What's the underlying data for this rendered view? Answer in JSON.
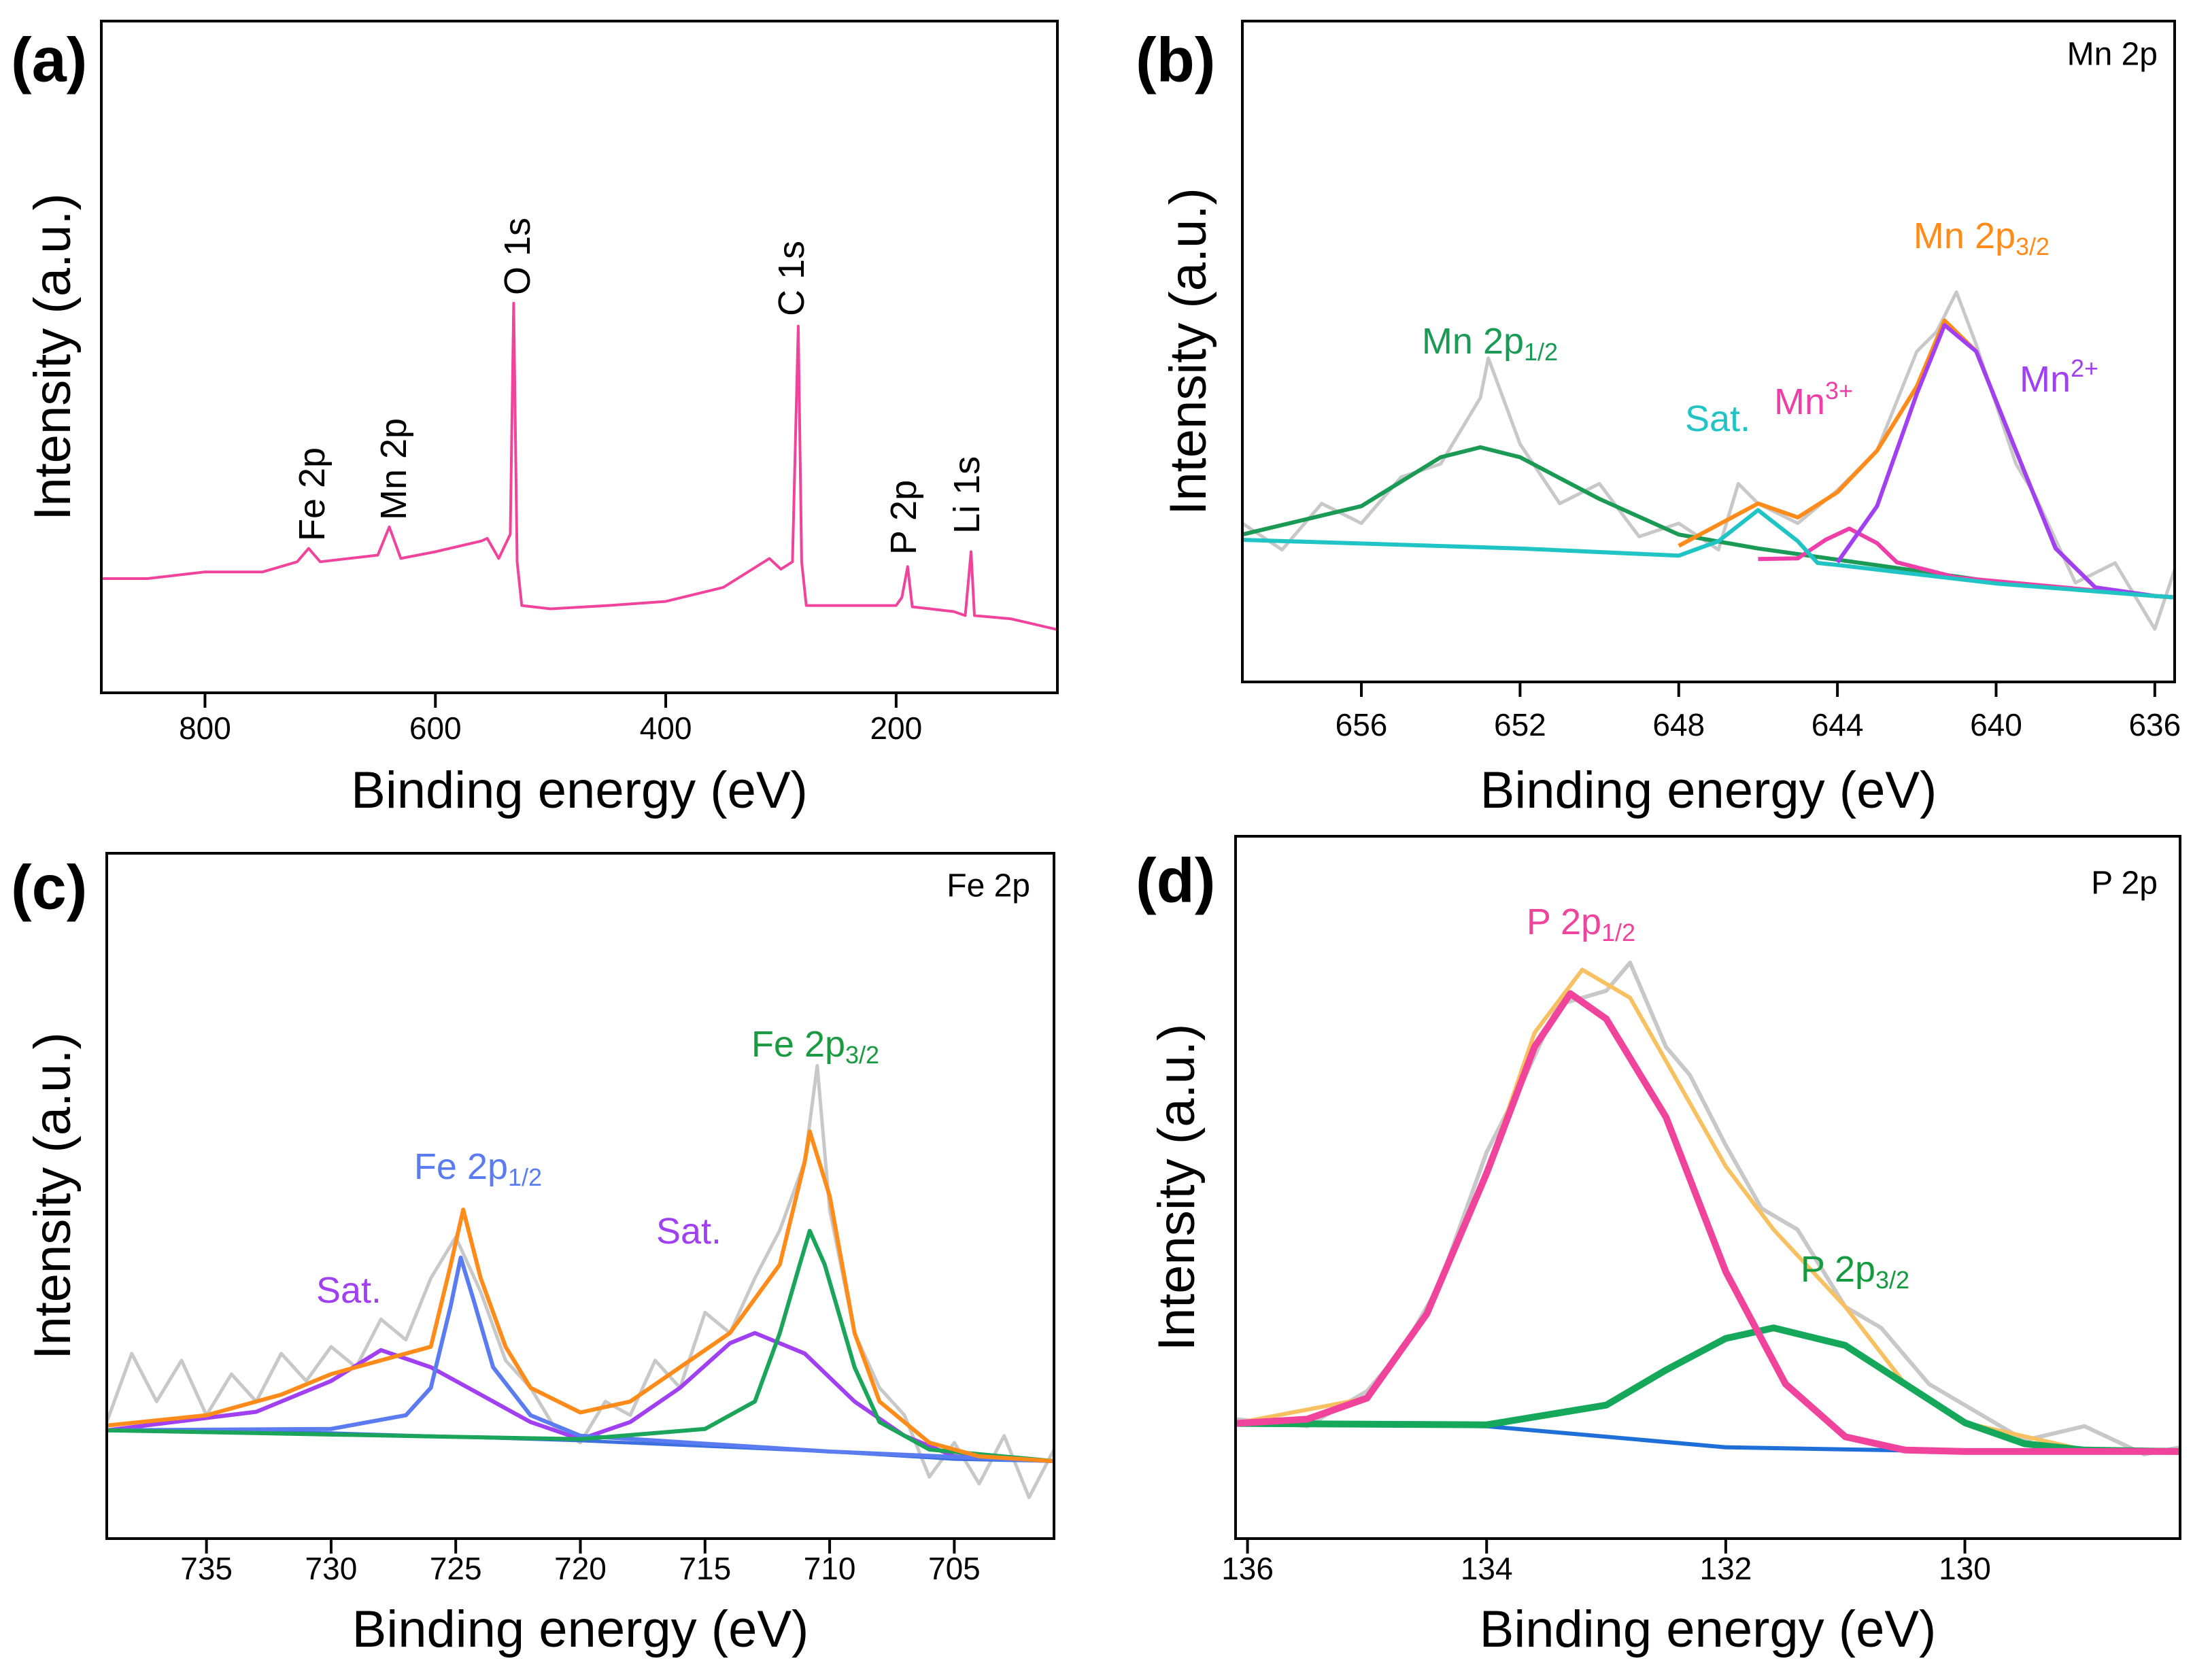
{
  "charts": [
    {
      "chart_data": {
        "type": "line",
        "panel_label": "(a)",
        "x_label": "Binding energy (eV)",
        "y_label": "Intensity (a.u.)",
        "xlim": [
          890,
          60
        ],
        "ylim": [
          0,
          100
        ],
        "xticks": [
          800,
          600,
          400,
          200
        ],
        "series": [
          {
            "color": "#f0449c",
            "width": 4,
            "x": [
              890,
              850,
              800,
              750,
              720,
              710,
              700,
              650,
              640,
              630,
              600,
              560,
              555,
              545,
              535,
              532,
              529,
              525,
              500,
              450,
              400,
              350,
              310,
              300,
              290,
              285,
              282,
              278,
              250,
              200,
              195,
              190,
              186,
              150,
              140,
              135,
              132,
              100,
              60
            ],
            "values": [
              17,
              17,
              18,
              18,
              19.5,
              21.5,
              19.5,
              20.5,
              24.7,
              20,
              21,
              22.6,
              23,
              20,
              23.6,
              58,
              19.5,
              13,
              12.5,
              13,
              13.6,
              15.7,
              20,
              18.4,
              19.5,
              54.6,
              19.5,
              13,
              13,
              13,
              14.2,
              18.8,
              12.8,
              12.1,
              11.5,
              21,
              11.5,
              11,
              9.4
            ]
          }
        ],
        "annotations": [
          {
            "text": "Fe 2p"
          },
          {
            "text": "Mn 2p"
          },
          {
            "text": "O 1s"
          },
          {
            "text": "C 1s"
          },
          {
            "text": "P 2p"
          },
          {
            "text": "Li 1s"
          }
        ]
      }
    },
    {
      "chart_data": {
        "type": "line",
        "panel_label": "(b)",
        "label": "Mn 2p",
        "x_label": "Binding energy (eV)",
        "y_label": "Intensity (a.u.)",
        "xlim": [
          659,
          635.5
        ],
        "ylim": [
          0,
          100
        ],
        "xticks": [
          656,
          652,
          648,
          644,
          640,
          636
        ],
        "series": [
          {
            "color": "#c8c8c8",
            "width": 5,
            "x": [
              659,
              658,
              657,
              656,
              655,
              654,
              653,
              652.8,
              652,
              651,
              650,
              649,
              648,
              647,
              646.5,
              646,
              645,
              644,
              643,
              642,
              641.5,
              641,
              640.5,
              640,
              639.5,
              639,
              638,
              637,
              636,
              635.5
            ],
            "values": [
              24,
              20,
              27,
              24,
              31,
              33,
              43,
              49,
              36,
              27,
              30,
              22,
              24,
              20,
              30,
              27,
              24,
              29,
              35,
              50,
              53,
              59,
              51,
              42,
              33,
              28,
              15,
              18,
              8,
              17
            ]
          },
          {
            "color": "#1a9a55",
            "width": 6,
            "x": [
              659,
              656,
              654,
              653,
              652,
              650,
              648,
              646,
              644,
              640,
              636,
              635.5
            ],
            "values": [
              22.3,
              26.6,
              34,
              35.5,
              34,
              27.7,
              22.3,
              20.2,
              18.5,
              15.1,
              13,
              12.8
            ]
          },
          {
            "color": "#ff8c1a",
            "width": 6,
            "x": [
              648,
              646,
              645,
              644,
              643,
              642,
              641.3,
              640.5,
              639.5,
              638.5,
              637.5,
              636,
              635.5
            ],
            "values": [
              20.6,
              27,
              24.9,
              28.7,
              35,
              44.7,
              54.7,
              50,
              35,
              20.2,
              14.3,
              13,
              12.8
            ]
          },
          {
            "color": "#ee3fa8",
            "width": 6,
            "x": [
              646,
              645,
              644.3,
              643.7,
              643,
              642.5,
              641,
              636,
              635.5
            ],
            "values": [
              18.6,
              18.7,
              21.5,
              23.2,
              21,
              18.1,
              15.8,
              13,
              12.8
            ]
          },
          {
            "color": "#a040f0",
            "width": 6,
            "x": [
              644,
              643,
              642,
              641.3,
              640.5,
              639.5,
              638.5,
              637.5,
              636,
              635.5
            ],
            "values": [
              18.1,
              26.6,
              43.6,
              54,
              50,
              35,
              20.2,
              14.3,
              13,
              12.8
            ]
          },
          {
            "color": "#21c4c4",
            "width": 6,
            "x": [
              659,
              652,
              648,
              647,
              646,
              645,
              644.5,
              644,
              640,
              636,
              635.5
            ],
            "values": [
              21.5,
              20.2,
              19.1,
              21.3,
              26,
              21.3,
              18,
              17.7,
              14.9,
              13,
              12.8
            ]
          }
        ],
        "annotations": [
          {
            "text": "Mn 2p",
            "sub": "1/2",
            "color": "#1a9a55"
          },
          {
            "text": "Mn 2p",
            "sub": "3/2",
            "color": "#ff8c1a"
          },
          {
            "text": "Sat.",
            "color": "#21c4c4"
          },
          {
            "text": "Mn",
            "sup": "3+",
            "color": "#ee3fa8"
          },
          {
            "text": "Mn",
            "sup": "2+",
            "color": "#a040f0"
          }
        ]
      }
    },
    {
      "chart_data": {
        "type": "line",
        "panel_label": "(c)",
        "label": "Fe 2p",
        "x_label": "Binding energy (eV)",
        "y_label": "Intensity (a.u.)",
        "xlim": [
          739,
          701
        ],
        "ylim": [
          0,
          100
        ],
        "xticks": [
          735,
          730,
          725,
          720,
          715,
          710,
          705
        ],
        "series": [
          {
            "color": "#c8c8c8",
            "width": 5,
            "x": [
              739,
              738,
              737,
              736,
              735,
              734,
              733,
              732,
              731,
              730,
              729,
              728,
              727,
              726,
              725,
              724,
              723,
              722,
              721,
              720,
              719,
              718,
              717,
              716,
              715,
              714,
              713,
              712,
              711,
              710.5,
              710,
              709,
              708,
              707,
              706,
              705,
              704,
              703,
              702,
              701
            ],
            "values": [
              17,
              27,
              20,
              26,
              18,
              24,
              20,
              27,
              23,
              28,
              25,
              32,
              29,
              38,
              44,
              36,
              26,
              22,
              16,
              14,
              20,
              18,
              26,
              22,
              33,
              30,
              38,
              45,
              55,
              69,
              48,
              30,
              22,
              18,
              9,
              14,
              8,
              15,
              6,
              13
            ]
          },
          {
            "color": "#3c6fe0",
            "width": 5,
            "x": [
              739,
              730,
              720,
              710,
              705,
              701
            ],
            "values": [
              15.8,
              15.4,
              14.3,
              12.7,
              11.6,
              11.3
            ]
          },
          {
            "color": "#a040f0",
            "width": 6,
            "x": [
              739,
              733,
              730,
              728,
              726,
              724,
              722,
              720
            ],
            "values": [
              15.8,
              18.5,
              23,
              27.5,
              25,
              21,
              17,
              14.5
            ]
          },
          {
            "color": "#a040f0",
            "width": 6,
            "x": [
              720,
              718,
              716,
              714,
              713,
              711,
              709,
              707,
              705,
              701
            ],
            "values": [
              14.5,
              17,
              22,
              28.5,
              30,
              27,
              20,
              15,
              12,
              11.3
            ]
          },
          {
            "color": "#5b7cf0",
            "width": 6,
            "x": [
              739,
              730,
              727,
              726,
              725.2,
              724.8,
              724.3,
              723.5,
              722,
              720,
              710,
              701
            ],
            "values": [
              15.8,
              16,
              18,
              22,
              34,
              41,
              35,
              25,
              18,
              15,
              12.7,
              11.3
            ]
          },
          {
            "color": "#1aa55a",
            "width": 6,
            "x": [
              739,
              720,
              715,
              713,
              712,
              711.2,
              710.8,
              710.2,
              709,
              708,
              706,
              701
            ],
            "values": [
              15.8,
              14.5,
              16,
              20,
              30,
              40,
              44.9,
              40,
              25,
              17,
              13,
              11.3
            ]
          },
          {
            "color": "#ff8c1a",
            "width": 6,
            "x": [
              739,
              735,
              732,
              730,
              728,
              726,
              725.2,
              724.7,
              724,
              723,
              722,
              720,
              718,
              716,
              714,
              712,
              711,
              710.8,
              710,
              709,
              708,
              706,
              704,
              701
            ],
            "values": [
              16.5,
              18,
              21,
              24,
              26,
              28,
              40,
              48,
              38,
              28,
              22,
              18.4,
              20,
              25,
              30,
              40,
              55,
              59.4,
              50,
              30,
              20,
              14,
              12,
              11.3
            ]
          }
        ],
        "annotations": [
          {
            "text": "Fe 2p",
            "sub": "1/2",
            "color": "#5b7cf0"
          },
          {
            "text": "Fe 2p",
            "sub": "3/2",
            "color": "#1a9a40"
          },
          {
            "text": "Sat.",
            "color": "#a040f0"
          },
          {
            "text": "Sat.",
            "color": "#a040f0"
          }
        ]
      }
    },
    {
      "chart_data": {
        "type": "line",
        "panel_label": "(d)",
        "label": "P 2p",
        "x_label": "Binding energy (eV)",
        "y_label": "Intensity (a.u.)",
        "xlim": [
          136.1,
          128.2
        ],
        "ylim": [
          0,
          100
        ],
        "xticks": [
          136,
          134,
          132,
          130
        ],
        "series": [
          {
            "color": "#c8c8c8",
            "width": 6,
            "x": [
              136.1,
              135.5,
              135,
              134.7,
              134.4,
              134,
              133.7,
              133.4,
              133,
              132.8,
              132.5,
              132.3,
              132,
              131.7,
              131.4,
              131,
              130.7,
              130.3,
              130,
              129.5,
              129,
              128.5,
              128.2
            ],
            "values": [
              17,
              16,
              21,
              27,
              36,
              55,
              65,
              76,
              78,
              82,
              70,
              66,
              56,
              47,
              44,
              33,
              30,
              22,
              19,
              14,
              16,
              12,
              13
            ]
          },
          {
            "color": "#1f6fd8",
            "width": 6,
            "x": [
              136.1,
              134,
              132,
              130,
              128.2
            ],
            "values": [
              16.4,
              16,
              13,
              12.4,
              12.4
            ]
          },
          {
            "color": "#f7c060",
            "width": 6,
            "x": [
              136.1,
              135,
              134.5,
              134,
              133.6,
              133.2,
              132.8,
              132.5,
              132,
              131.6,
              131,
              130.5,
              130,
              129,
              128.2
            ],
            "values": [
              16.4,
              20,
              32,
              52,
              72,
              81,
              77,
              68,
              53,
              44,
              33,
              22,
              16.5,
              12.6,
              12.4
            ]
          },
          {
            "color": "#15a85a",
            "width": 10,
            "x": [
              136.1,
              134,
              133,
              132.5,
              132,
              131.6,
              131,
              130.5,
              130,
              129.5,
              129,
              128.2
            ],
            "values": [
              16.4,
              16.2,
              19,
              24,
              28.5,
              30,
              27.5,
              22,
              16.5,
              13.5,
              12.6,
              12.4
            ]
          },
          {
            "color": "#f0449c",
            "width": 10,
            "x": [
              136.1,
              135.5,
              135,
              134.5,
              134,
              133.6,
              133.3,
              133,
              132.5,
              132,
              131.5,
              131,
              130.5,
              130,
              128.2
            ],
            "values": [
              16.4,
              17,
              20,
              32,
              52,
              70,
              77.6,
              74,
              60,
              38,
              22,
              14.5,
              12.6,
              12.4,
              12.4
            ]
          }
        ],
        "annotations": [
          {
            "text": "P 2p",
            "sub": "1/2",
            "color": "#f0449c"
          },
          {
            "text": "P 2p",
            "sub": "3/2",
            "color": "#159a40"
          }
        ]
      }
    }
  ]
}
